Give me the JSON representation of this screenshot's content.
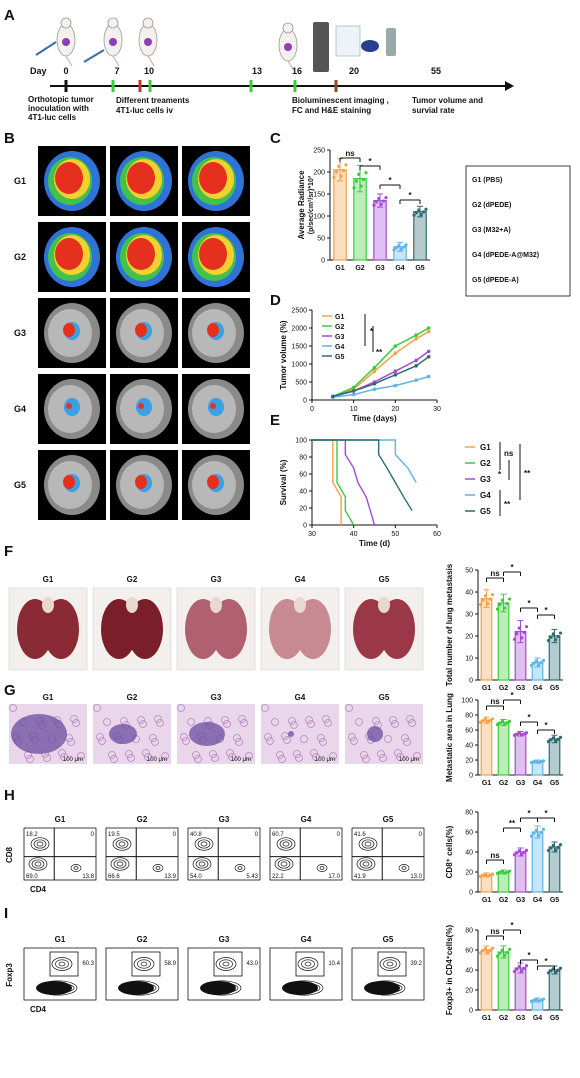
{
  "panels": [
    "A",
    "B",
    "C",
    "D",
    "E",
    "F",
    "G",
    "H",
    "I"
  ],
  "colors": {
    "G1": "#f5a04a",
    "G2": "#3ccb3c",
    "G3": "#a24bd6",
    "G4": "#5fb4e6",
    "G5": "#2e6b72"
  },
  "groups": [
    "G1",
    "G2",
    "G3",
    "G4",
    "G5"
  ],
  "timeline": {
    "day_label": "Day",
    "days": [
      "0",
      "7",
      "10",
      "13",
      "16",
      "20",
      "55"
    ],
    "label_inoculation": "Orthotopic tumor inoculation with 4T1-luc cells",
    "label_treatments": "Different treaments",
    "label_iv": "4T1-luc cells iv",
    "label_imaging": "Bioluminescent imaging ,",
    "label_staining": "FC and H&E staining",
    "label_volume": "Tumor volume and survial rate"
  },
  "legend_c": [
    "G1 (PBS)",
    "G2 (dPEDE)",
    "G3 (M32+A)",
    "G4 (dPEDE-A@M32)",
    "G5 (dPEDE-A)"
  ],
  "sig": {
    "ns": "ns",
    "one": "*",
    "two": "**"
  },
  "chart_data": [
    {
      "id": "C",
      "type": "bar",
      "categories": [
        "G1",
        "G2",
        "G3",
        "G4",
        "G5"
      ],
      "values": [
        205,
        185,
        135,
        30,
        110
      ],
      "errors": [
        25,
        30,
        15,
        10,
        12
      ],
      "ylabel": "Average Radiance",
      "ylabel2": "(p/sec/cm²/sr)*10³",
      "ylim": [
        0,
        250
      ],
      "yticks": [
        "0",
        "50",
        "100",
        "150",
        "200",
        "250"
      ]
    },
    {
      "id": "D",
      "type": "line",
      "x": [
        5,
        10,
        15,
        20,
        25,
        28
      ],
      "series": [
        {
          "name": "G1",
          "values": [
            100,
            300,
            800,
            1300,
            1700,
            1900
          ]
        },
        {
          "name": "G2",
          "values": [
            100,
            350,
            900,
            1500,
            1800,
            2000
          ]
        },
        {
          "name": "G3",
          "values": [
            100,
            250,
            500,
            800,
            1100,
            1350
          ]
        },
        {
          "name": "G4",
          "values": [
            80,
            150,
            300,
            400,
            550,
            650
          ]
        },
        {
          "name": "G5",
          "values": [
            100,
            250,
            450,
            700,
            950,
            1200
          ]
        }
      ],
      "xlabel": "Time (days)",
      "ylabel": "Tumor volume (%)",
      "xlim": [
        0,
        30
      ],
      "ylim": [
        0,
        2500
      ],
      "xticks": [
        "0",
        "10",
        "20",
        "30"
      ],
      "yticks": [
        "0",
        "500",
        "1000",
        "1500",
        "2000",
        "2500"
      ]
    },
    {
      "id": "E",
      "type": "line",
      "series": [
        {
          "name": "G1",
          "values": [
            [
              30,
              100
            ],
            [
              35,
              100
            ],
            [
              35,
              50
            ],
            [
              37,
              33
            ],
            [
              37,
              0
            ]
          ]
        },
        {
          "name": "G2",
          "values": [
            [
              30,
              100
            ],
            [
              36,
              100
            ],
            [
              36,
              50
            ],
            [
              38,
              33
            ],
            [
              38,
              17
            ],
            [
              40,
              0
            ]
          ]
        },
        {
          "name": "G3",
          "values": [
            [
              30,
              100
            ],
            [
              38,
              100
            ],
            [
              38,
              83
            ],
            [
              40,
              67
            ],
            [
              41,
              50
            ],
            [
              43,
              33
            ],
            [
              44,
              17
            ],
            [
              45,
              0
            ]
          ]
        },
        {
          "name": "G4",
          "values": [
            [
              30,
              100
            ],
            [
              50,
              100
            ],
            [
              50,
              83
            ],
            [
              53,
              67
            ],
            [
              55,
              50
            ]
          ]
        },
        {
          "name": "G5",
          "values": [
            [
              30,
              100
            ],
            [
              46,
              100
            ],
            [
              46,
              83
            ],
            [
              48,
              67
            ],
            [
              50,
              50
            ],
            [
              52,
              33
            ],
            [
              54,
              17
            ]
          ]
        }
      ],
      "xlabel": "Time (d)",
      "ylabel": "Survival (%)",
      "xlim": [
        30,
        60
      ],
      "ylim": [
        0,
        100
      ],
      "xticks": [
        "30",
        "40",
        "50",
        "60"
      ],
      "yticks": [
        "0",
        "20",
        "40",
        "60",
        "80",
        "100"
      ]
    },
    {
      "id": "F",
      "type": "bar",
      "categories": [
        "G1",
        "G2",
        "G3",
        "G4",
        "G5"
      ],
      "values": [
        37,
        35,
        22,
        8,
        20
      ],
      "errors": [
        4,
        4,
        5,
        2,
        3
      ],
      "ylabel": "Total number of lung metastasis",
      "ylim": [
        0,
        50
      ],
      "yticks": [
        "0",
        "10",
        "20",
        "30",
        "40",
        "50"
      ]
    },
    {
      "id": "G",
      "type": "bar",
      "categories": [
        "G1",
        "G2",
        "G3",
        "G4",
        "G5"
      ],
      "values": [
        73,
        70,
        55,
        18,
        48
      ],
      "errors": [
        4,
        4,
        3,
        2,
        5
      ],
      "ylabel": "Metastatic area in Lung",
      "ylim": [
        0,
        100
      ],
      "yticks": [
        "0",
        "20",
        "40",
        "60",
        "80",
        "100"
      ]
    },
    {
      "id": "H",
      "type": "bar",
      "categories": [
        "G1",
        "G2",
        "G3",
        "G4",
        "G5"
      ],
      "values": [
        17,
        20,
        40,
        60,
        45
      ],
      "errors": [
        2,
        2,
        4,
        6,
        5
      ],
      "ylabel": "CD8⁺ cells(%)",
      "ylim": [
        0,
        80
      ],
      "yticks": [
        "0",
        "20",
        "40",
        "60",
        "80"
      ]
    },
    {
      "id": "I",
      "type": "bar",
      "categories": [
        "G1",
        "G2",
        "G3",
        "G4",
        "G5"
      ],
      "values": [
        60,
        58,
        42,
        10,
        40
      ],
      "errors": [
        4,
        6,
        5,
        2,
        4
      ],
      "ylabel": "Foxp3+ in CD4⁺cells(%)",
      "ylim": [
        0,
        80
      ],
      "yticks": [
        "0",
        "20",
        "40",
        "60",
        "80"
      ]
    }
  ],
  "flow_h": {
    "yaxis": "CD8",
    "xaxis": "CD4",
    "ticks": [
      "10⁰",
      "10²",
      "10⁴",
      "10⁶"
    ],
    "quad": [
      [
        "18.2",
        "0",
        "69.0",
        "13.8"
      ],
      [
        "19.5",
        "0",
        "66.6",
        "13.9"
      ],
      [
        "40.8",
        "0",
        "54.0",
        "5.43"
      ],
      [
        "60.7",
        "0",
        "22.2",
        "17.0"
      ],
      [
        "41.6",
        "0",
        "41.9",
        "13.0"
      ]
    ]
  },
  "flow_i": {
    "yaxis": "Foxp3",
    "xaxis": "CD4",
    "ticks": [
      "10⁰",
      "10²",
      "10⁴",
      "10⁶"
    ],
    "gate": [
      "60.3",
      "58.9",
      "43.0",
      "10.4",
      "39.2"
    ]
  },
  "he_scale": "100 μm"
}
